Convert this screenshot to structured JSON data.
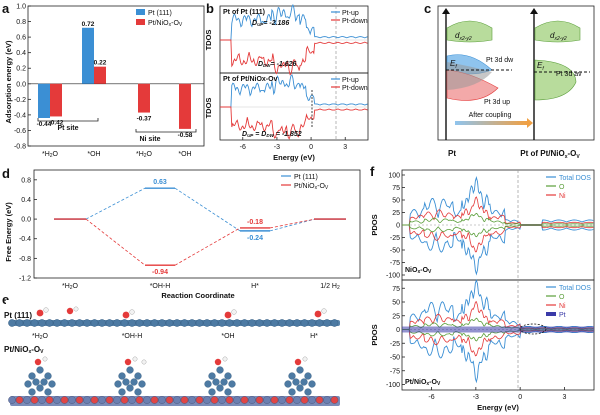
{
  "colors": {
    "blue": "#3b8fd4",
    "red": "#e43a3a",
    "green": "#5a9e3a",
    "navy": "#3a3aa8"
  },
  "panels": {
    "a": "a",
    "b": "b",
    "c": "c",
    "d": "d",
    "e": "e",
    "f": "f"
  },
  "chart_data": [
    {
      "type": "bar",
      "panel": "a",
      "ylabel": "Adsorption energy (eV)",
      "ylim": [
        -0.8,
        1.0
      ],
      "yticks": [
        "-0.8",
        "-0.6",
        "-0.4",
        "-0.2",
        "0.0",
        "0.2",
        "0.4",
        "0.6",
        "0.8",
        "1.0"
      ],
      "categories": [
        "*H2O",
        "*OH",
        "*H2O",
        "*OH"
      ],
      "category_labels": [
        "*H",
        "2",
        "O",
        "*OH",
        "*H",
        "2",
        "O",
        "*OH"
      ],
      "groups": [
        "Pt site",
        "Ni site"
      ],
      "legend": [
        "Pt (111)",
        "Pt/NiO",
        "x",
        "-O",
        "V"
      ],
      "series": [
        {
          "name": "Pt (111)",
          "values": [
            -0.44,
            0.72,
            null,
            null
          ]
        },
        {
          "name": "Pt/NiOx-Ov",
          "values": [
            -0.42,
            0.22,
            -0.37,
            -0.58
          ]
        }
      ],
      "value_labels": [
        "-0.44",
        "-0.42",
        "0.72",
        "0.22",
        "-0.37",
        "-0.58"
      ]
    },
    {
      "type": "line",
      "panel": "b",
      "ylabel": "TDOS",
      "xlabel": "Energy (eV)",
      "xlim": [
        -8,
        5
      ],
      "xticks": [
        "-6",
        "-3",
        "0",
        "3"
      ],
      "subplots": [
        {
          "title": "Pt of Pt (111)",
          "annot_up": "D",
          "annot_up_sub": "UP",
          "annot_up_val": "= -2.186",
          "annot_dw": "D",
          "annot_dw_sub": "DW",
          "annot_dw_val": "= -1.626"
        },
        {
          "title": "Pt of Pt/NiOx-Ov",
          "annot": "D",
          "annot_sub1": "UP",
          "annot_mid": " = D",
          "annot_sub2": "DW",
          "annot_val": " = -1.852"
        }
      ],
      "legend": [
        "Pt-up",
        "Pt-down"
      ]
    },
    {
      "type": "other",
      "panel": "c",
      "labels": {
        "left": "Pt",
        "right": "Pt of Pt/NiO",
        "right_sub": "x",
        "right_tail": "-O",
        "right_tail2": "V",
        "ef": "E",
        "ef_sub": "f",
        "dxy": "d",
        "dxy_sub": "x2-y2",
        "dw": "Pt 3d dw",
        "up": "Pt 3d up",
        "av": "Pt 3d av",
        "arrow": "After coupling"
      }
    },
    {
      "type": "line",
      "panel": "d",
      "ylabel": "Free Energy (eV)",
      "xlabel": "Reaction Coordinate",
      "ylim": [
        -1.2,
        1.0
      ],
      "yticks": [
        "-1.2",
        "-0.8",
        "-0.4",
        "0.0",
        "0.4",
        "0.8"
      ],
      "categories": [
        "*H2O",
        "*OH-H",
        "H*",
        "1/2 H2"
      ],
      "series": [
        {
          "name": "Pt (111)",
          "values": [
            0,
            0.63,
            -0.24,
            0
          ]
        },
        {
          "name": "Pt/NiOx-Ov",
          "values": [
            0,
            -0.94,
            -0.18,
            0
          ]
        }
      ],
      "value_labels": [
        "0.63",
        "-0.94",
        "-0.18",
        "-0.24"
      ]
    },
    {
      "type": "other",
      "panel": "e",
      "labels": {
        "top": "Pt (111)",
        "bottom": "Pt/NiO",
        "bottom_sub": "x",
        "bottom_tail": "-O",
        "bottom_tail2": "V",
        "s1": "*H2O",
        "s2": "*OH-H",
        "s3": "*OH",
        "s4": "H*"
      }
    },
    {
      "type": "line",
      "panel": "f",
      "ylabel": "PDOS",
      "xlabel": "Energy (eV)",
      "xlim": [
        -8,
        5
      ],
      "xticks": [
        "-6",
        "-3",
        "0",
        "3"
      ],
      "top": {
        "yticks": [
          "100",
          "75",
          "50",
          "25",
          "0",
          "-25",
          "-50",
          "-75",
          "-100"
        ],
        "legend": [
          "Total DOS",
          "O",
          "Ni"
        ],
        "caption": "NiO",
        "caption_sub": "x",
        "caption_tail": "-O",
        "caption_tail2": "V"
      },
      "bottom": {
        "yticks": [
          "75",
          "50",
          "25",
          "0",
          "-25",
          "-50",
          "-75",
          "-100"
        ],
        "legend": [
          "Total DOS",
          "O",
          "Ni",
          "Pt"
        ],
        "caption": "Pt/NiO",
        "caption_sub": "x",
        "caption_tail": "-O",
        "caption_tail2": "V"
      }
    }
  ]
}
